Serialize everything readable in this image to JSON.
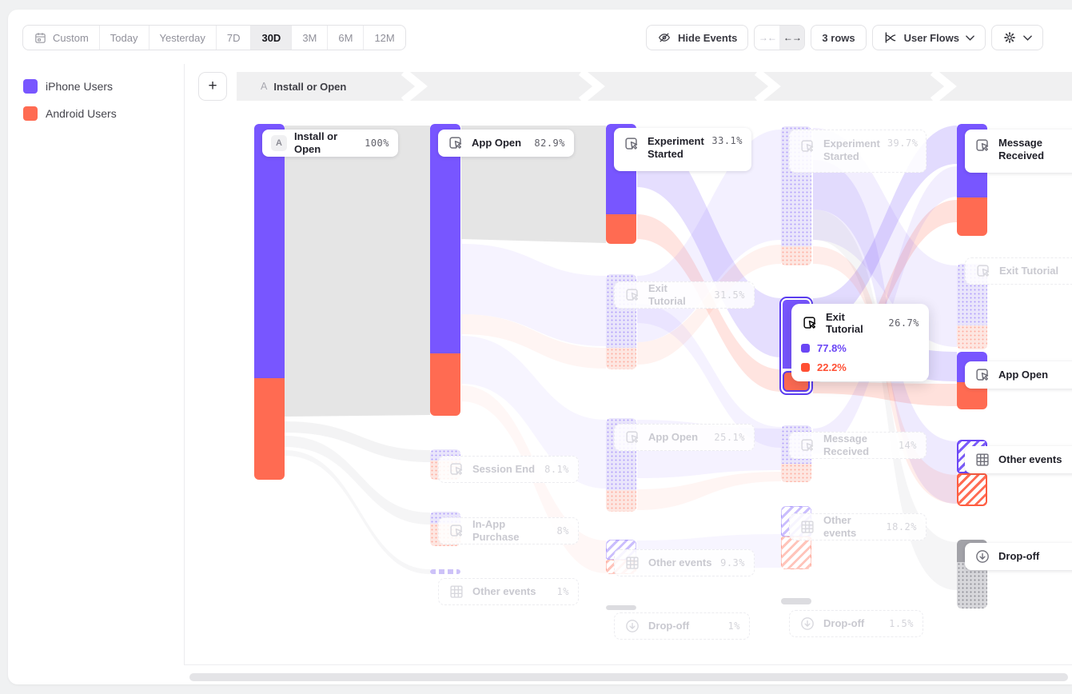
{
  "toolbar": {
    "date_ranges": [
      "Custom",
      "Today",
      "Yesterday",
      "7D",
      "30D",
      "3M",
      "6M",
      "12M"
    ],
    "selected_range": "30D",
    "hide_events_label": "Hide Events",
    "collapse_icon_label": "→←",
    "expand_icon_label": "←→",
    "rows_label": "3 rows",
    "view_selector_label": "User Flows"
  },
  "legend": {
    "items": [
      {
        "label": "iPhone Users",
        "color": "#7856FF"
      },
      {
        "label": "Android Users",
        "color": "#FF6B52"
      }
    ]
  },
  "flow_header": {
    "add_button_label": "+",
    "start_badge": "A",
    "start_event_label": "Install or Open"
  },
  "chart_data": {
    "type": "sankey",
    "legend_series": [
      "iPhone Users",
      "Android Users"
    ],
    "series_colors": {
      "iPhone Users": "#7856FF",
      "Android Users": "#FF6B52"
    },
    "columns": [
      {
        "step": 1,
        "nodes": [
          {
            "id": "c1n1",
            "label": "Install or Open",
            "value_pct": 100,
            "value_label": "100%",
            "state": "active",
            "icon": "badge-a"
          }
        ]
      },
      {
        "step": 2,
        "nodes": [
          {
            "id": "c2n1",
            "label": "App Open",
            "value_pct": 82.9,
            "value_label": "82.9%",
            "state": "active",
            "icon": "click"
          },
          {
            "id": "c2n2",
            "label": "Session End",
            "value_pct": 8.1,
            "value_label": "8.1%",
            "state": "faded",
            "icon": "click"
          },
          {
            "id": "c2n3",
            "label": "In-App Purchase",
            "value_pct": 8,
            "value_label": "8%",
            "state": "faded",
            "icon": "click"
          },
          {
            "id": "c2n4",
            "label": "Other events",
            "value_pct": 1,
            "value_label": "1%",
            "state": "faded",
            "icon": "grid"
          }
        ]
      },
      {
        "step": 3,
        "nodes": [
          {
            "id": "c3n1",
            "label": "Experiment Started",
            "value_pct": 33.1,
            "value_label": "33.1%",
            "state": "active",
            "icon": "click"
          },
          {
            "id": "c3n2",
            "label": "Exit Tutorial",
            "value_pct": 31.5,
            "value_label": "31.5%",
            "state": "faded",
            "icon": "click"
          },
          {
            "id": "c3n3",
            "label": "App Open",
            "value_pct": 25.1,
            "value_label": "25.1%",
            "state": "faded",
            "icon": "click"
          },
          {
            "id": "c3n4",
            "label": "Other events",
            "value_pct": 9.3,
            "value_label": "9.3%",
            "state": "faded",
            "icon": "grid"
          },
          {
            "id": "c3n5",
            "label": "Drop-off",
            "value_pct": 1,
            "value_label": "1%",
            "state": "faded",
            "icon": "drop"
          }
        ]
      },
      {
        "step": 4,
        "nodes": [
          {
            "id": "c4n1",
            "label": "Experiment Started",
            "value_pct": 39.7,
            "value_label": "39.7%",
            "state": "faded",
            "icon": "click"
          },
          {
            "id": "c4n2",
            "label": "Exit Tutorial",
            "value_pct": 26.7,
            "value_label": "26.7%",
            "state": "hovered",
            "icon": "click",
            "breakdown": [
              {
                "label": "77.8%",
                "series": "iPhone Users",
                "color": "#6A46F5"
              },
              {
                "label": "22.2%",
                "series": "Android Users",
                "color": "#FF4F33"
              }
            ]
          },
          {
            "id": "c4n3",
            "label": "Message Received",
            "value_pct": 14,
            "value_label": "14%",
            "state": "faded",
            "icon": "click"
          },
          {
            "id": "c4n4",
            "label": "Other events",
            "value_pct": 18.2,
            "value_label": "18.2%",
            "state": "faded",
            "icon": "grid"
          },
          {
            "id": "c4n5",
            "label": "Drop-off",
            "value_pct": 1.5,
            "value_label": "1.5%",
            "state": "faded",
            "icon": "drop"
          }
        ]
      },
      {
        "step": 5,
        "nodes": [
          {
            "id": "c5n1",
            "label": "Message Received",
            "value_label": "",
            "state": "active",
            "icon": "click"
          },
          {
            "id": "c5n2",
            "label": "Exit Tutorial",
            "value_label": "",
            "state": "faded",
            "icon": "click"
          },
          {
            "id": "c5n3",
            "label": "App Open",
            "value_label": "",
            "state": "active",
            "icon": "click"
          },
          {
            "id": "c5n4",
            "label": "Other events",
            "value_label": "",
            "state": "active",
            "icon": "grid"
          },
          {
            "id": "c5n5",
            "label": "Drop-off",
            "value_label": "",
            "state": "active",
            "icon": "drop"
          }
        ]
      }
    ]
  }
}
